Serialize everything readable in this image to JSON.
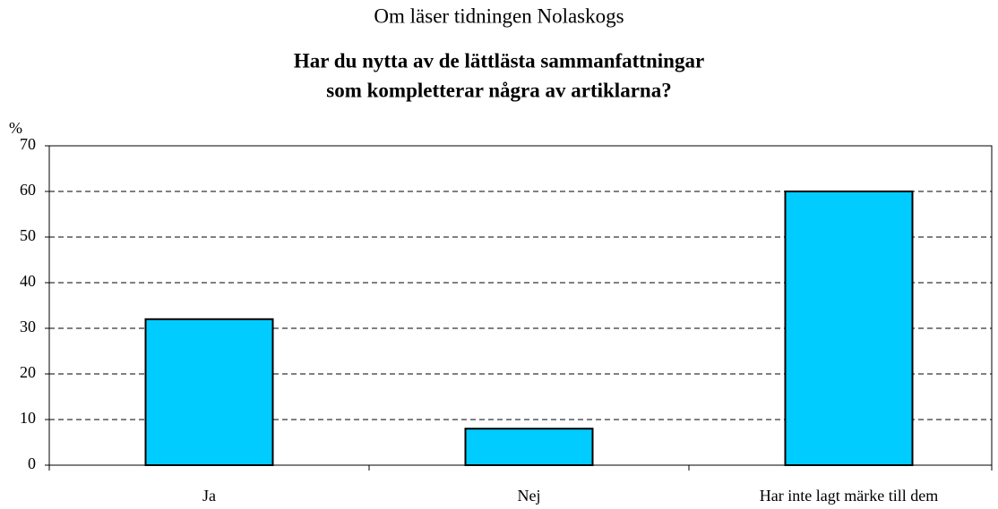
{
  "chart_data": {
    "type": "bar",
    "title": "Om läser tidningen Nolaskogs",
    "subtitle": [
      "Har du nytta av de lättlästa sammanfattningar",
      "som kompletterar några av artiklarna?"
    ],
    "y_label": "%",
    "categories": [
      "Ja",
      "Nej",
      "Har inte lagt märke till dem"
    ],
    "values": [
      32,
      8,
      60
    ],
    "color": "#00ccff",
    "ylim": [
      0,
      70
    ],
    "yticks": [
      0,
      10,
      20,
      30,
      40,
      50,
      60,
      70
    ],
    "grid": true
  }
}
